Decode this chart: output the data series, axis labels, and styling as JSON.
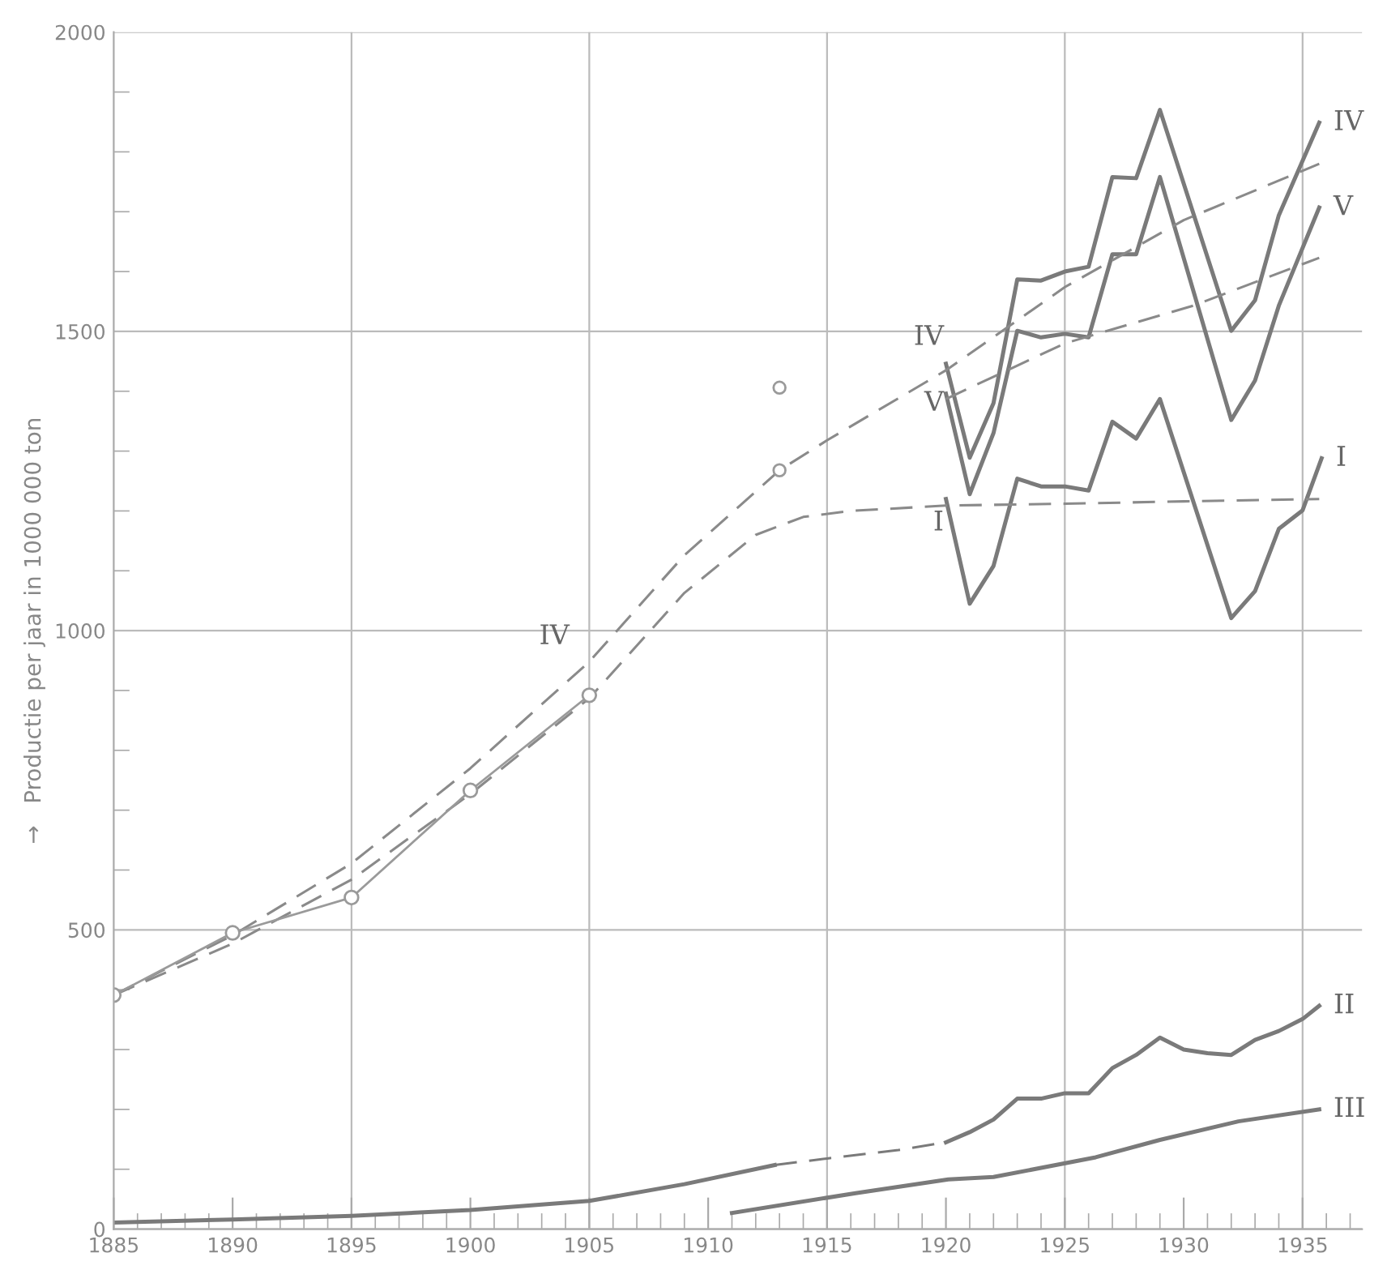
{
  "chart_data": {
    "type": "line",
    "ylabel": "→   Productie per jaar in 1000 000 ton",
    "xlim": [
      1885,
      1937.5
    ],
    "ylim": [
      0,
      2000
    ],
    "xticks": [
      1885,
      1890,
      1895,
      1900,
      1905,
      1910,
      1915,
      1920,
      1925,
      1930,
      1935
    ],
    "yticks": [
      0,
      500,
      1000,
      1500,
      2000
    ],
    "grid": "y",
    "legend": false,
    "ref_lines": [
      {
        "axis": "x",
        "value": 1895
      },
      {
        "axis": "x",
        "value": 1905
      },
      {
        "axis": "x",
        "value": 1915
      },
      {
        "axis": "x",
        "value": 1925
      },
      {
        "axis": "x",
        "value": 1935
      }
    ],
    "series": [
      {
        "name": "IV",
        "color": "#7a7a7a",
        "line_style": "solid",
        "x": [
          1920,
          1921,
          1922,
          1923,
          1924,
          1925,
          1926,
          1927,
          1928,
          1929,
          1932,
          1933,
          1934,
          1935.7
        ],
        "values": [
          1446,
          1289,
          1380,
          1587,
          1585,
          1600,
          1608,
          1758,
          1756,
          1870,
          1501,
          1552,
          1694,
          1849
        ]
      },
      {
        "name": "V",
        "color": "#7a7a7a",
        "line_style": "solid",
        "x": [
          1920,
          1921,
          1922,
          1923,
          1924,
          1925,
          1926,
          1927,
          1928,
          1929,
          1932,
          1933,
          1934,
          1935.7
        ],
        "values": [
          1396,
          1228,
          1330,
          1501,
          1490,
          1496,
          1490,
          1629,
          1629,
          1758,
          1352,
          1418,
          1543,
          1707
        ]
      },
      {
        "name": "I",
        "color": "#7a7a7a",
        "line_style": "solid",
        "x": [
          1920,
          1921,
          1922,
          1923,
          1924,
          1925,
          1926,
          1927,
          1928,
          1929,
          1932,
          1933,
          1934,
          1935,
          1935.8
        ],
        "values": [
          1220,
          1045,
          1108,
          1254,
          1241,
          1241,
          1234,
          1349,
          1321,
          1387,
          1021,
          1066,
          1170,
          1201,
          1288
        ]
      },
      {
        "name": "II",
        "color": "#7a7a7a",
        "line_style": "solid",
        "x": [
          1920,
          1921,
          1922,
          1923,
          1924,
          1925,
          1926,
          1927,
          1928,
          1929,
          1930,
          1931,
          1932,
          1933,
          1934,
          1935,
          1935.7
        ],
        "values": [
          145,
          162,
          183,
          218,
          218,
          227,
          227,
          269,
          291,
          320,
          300,
          294,
          291,
          316,
          331,
          351,
          373
        ]
      },
      {
        "name": "III",
        "color": "#7a7a7a",
        "line_style": "solid",
        "x": [
          1911,
          1916.2,
          1920.1,
          1922,
          1926.3,
          1929,
          1932.3,
          1935.7
        ],
        "values": [
          27,
          60,
          83,
          87,
          120,
          149,
          180,
          200
        ]
      },
      {
        "color": "#7a7a7a",
        "line_style": "solid",
        "x": [
          1885,
          1890,
          1895,
          1900,
          1905,
          1909,
          1912.8
        ],
        "values": [
          11,
          16,
          22,
          32,
          47,
          75,
          107
        ]
      },
      {
        "color": "#7a7a7a",
        "line_style": "dashed",
        "x": [
          1912.8,
          1915,
          1918,
          1920
        ],
        "values": [
          107,
          118,
          132,
          145
        ]
      },
      {
        "color": "#8a8a8a",
        "line_style": "dashed",
        "x": [
          1885,
          1890,
          1895,
          1900,
          1905,
          1909,
          1913,
          1915,
          1920,
          1925,
          1930,
          1935.7
        ],
        "values": [
          391,
          491,
          611,
          770,
          948,
          1126,
          1268,
          1318,
          1435,
          1574,
          1686,
          1780
        ]
      },
      {
        "color": "#8a8a8a",
        "line_style": "dashed",
        "x": [
          1885,
          1890,
          1895,
          1900,
          1905,
          1909,
          1912,
          1914,
          1916,
          1920,
          1925,
          1930,
          1935.7
        ],
        "values": [
          391,
          477,
          584,
          727,
          887,
          1063,
          1160,
          1190,
          1200,
          1209,
          1212,
          1216,
          1220
        ]
      },
      {
        "color": "#8a8a8a",
        "line_style": "dashed",
        "x": [
          1920,
          1925,
          1930.4,
          1935.7
        ],
        "values": [
          1387,
          1480,
          1543,
          1623
        ]
      },
      {
        "color": "#9a9a9a",
        "line_style": "solid",
        "marker": "circle",
        "x": [
          1885,
          1890,
          1895,
          1900,
          1905
        ],
        "values": [
          391,
          495,
          554,
          733,
          892
        ]
      },
      {
        "type": "scatter",
        "color": "#9a9a9a",
        "marker": "circle",
        "x": [
          1913,
          1913
        ],
        "values": [
          1268,
          1406
        ]
      }
    ],
    "annotations": [
      "IV",
      "V",
      "I",
      "IV"
    ]
  }
}
